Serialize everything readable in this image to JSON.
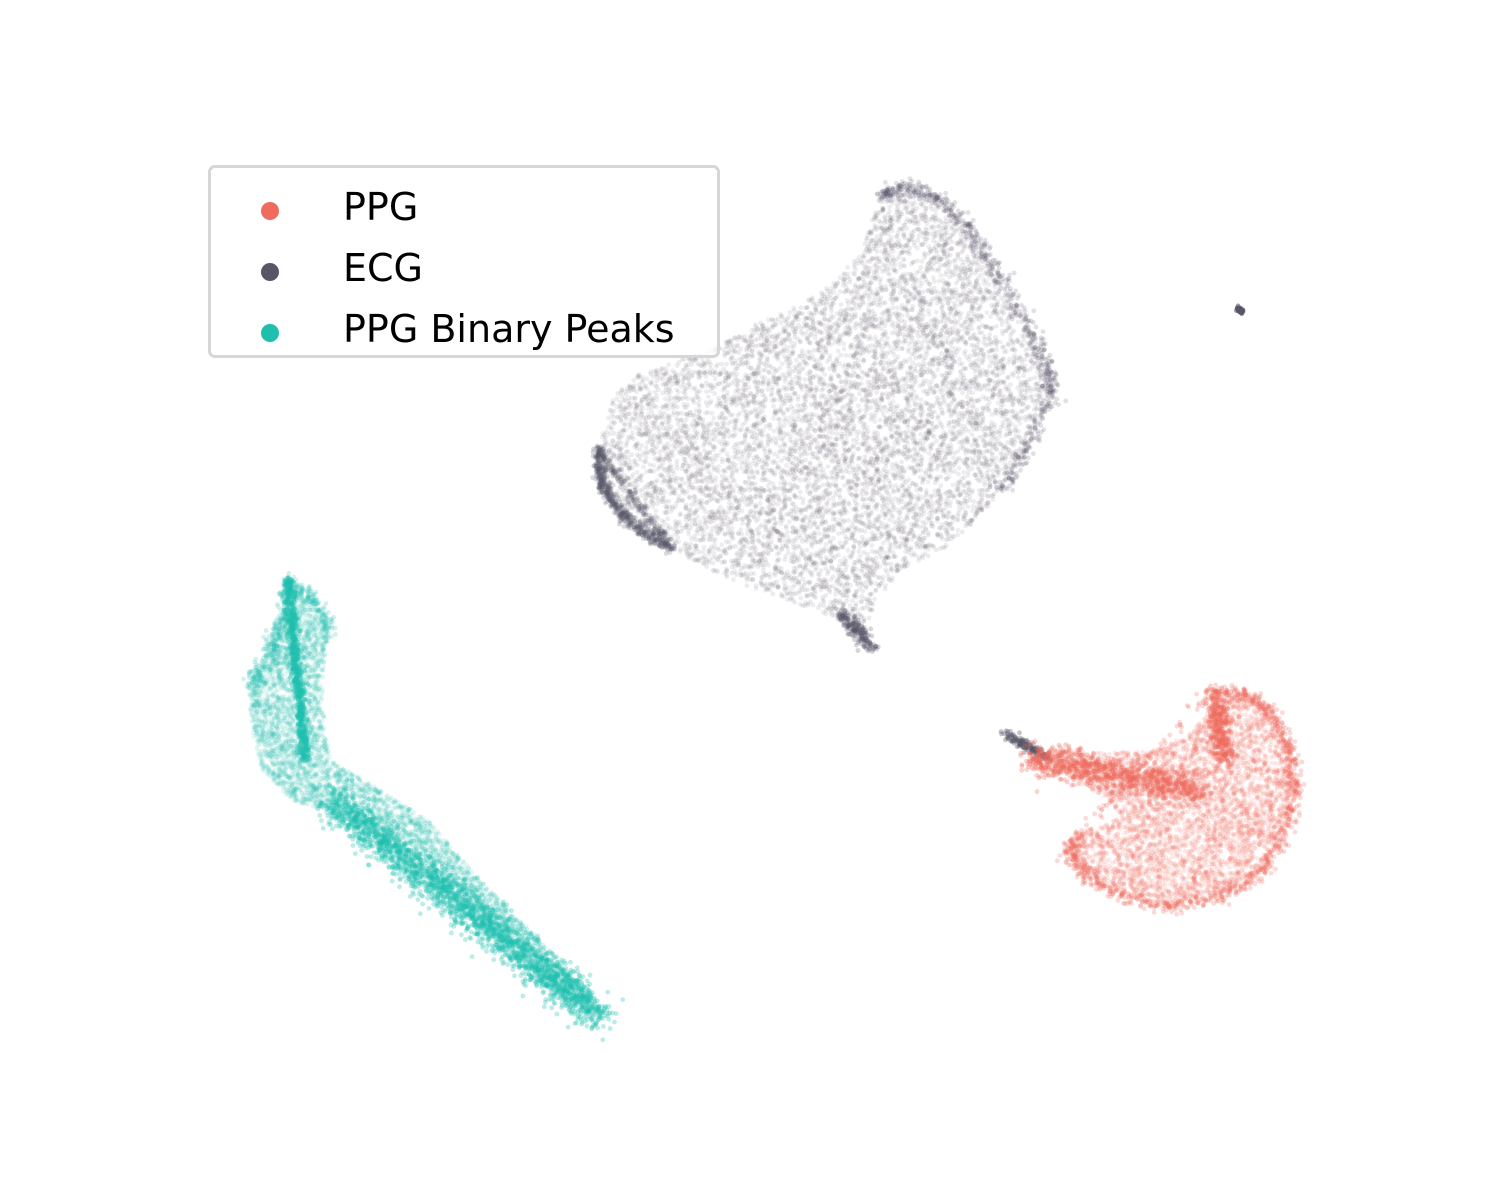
{
  "chart_data": {
    "type": "scatter",
    "title": "",
    "xlabel": "",
    "ylabel": "",
    "axes_visible": false,
    "grid": false,
    "legend_position": "upper-left",
    "series": [
      {
        "name": "PPG",
        "color": "#ee6b5e"
      },
      {
        "name": "ECG",
        "color": "#575568"
      },
      {
        "name": "PPG Binary Peaks",
        "color": "#1fbfae"
      }
    ]
  }
}
